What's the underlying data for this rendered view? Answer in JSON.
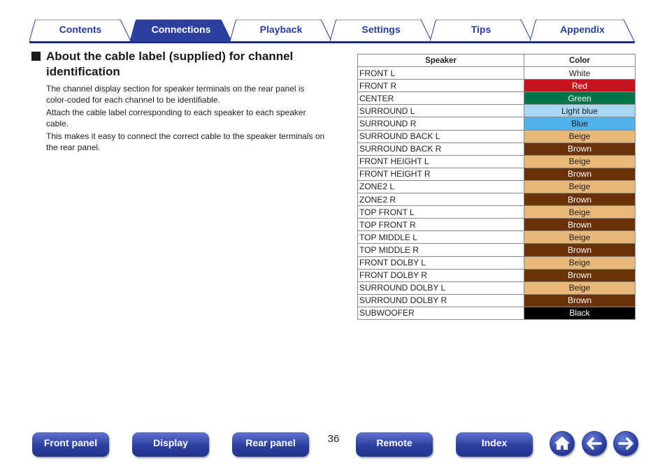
{
  "tabs": [
    {
      "label": "Contents",
      "active": false
    },
    {
      "label": "Connections",
      "active": true
    },
    {
      "label": "Playback",
      "active": false
    },
    {
      "label": "Settings",
      "active": false
    },
    {
      "label": "Tips",
      "active": false
    },
    {
      "label": "Appendix",
      "active": false
    }
  ],
  "section": {
    "title": "About the cable label (supplied) for channel identification",
    "paragraphs": [
      "The channel display section for speaker terminals on the rear panel is color-coded for each channel to be identifiable.",
      "Attach the cable label corresponding to each speaker to each speaker cable.",
      "This makes it easy to connect the correct cable to the speaker terminals on the rear panel."
    ]
  },
  "table": {
    "headers": [
      "Speaker",
      "Color"
    ],
    "rows": [
      {
        "speaker": "FRONT L",
        "color": "White",
        "bg": "#ffffff",
        "fg": "#222222"
      },
      {
        "speaker": "FRONT R",
        "color": "Red",
        "bg": "#c4161c",
        "fg": "#ffffff"
      },
      {
        "speaker": "CENTER",
        "color": "Green",
        "bg": "#00754a",
        "fg": "#ffffff"
      },
      {
        "speaker": "SURROUND L",
        "color": "Light blue",
        "bg": "#a9d6f2",
        "fg": "#222222"
      },
      {
        "speaker": "SURROUND R",
        "color": "Blue",
        "bg": "#50b2e8",
        "fg": "#222222"
      },
      {
        "speaker": "SURROUND BACK L",
        "color": "Beige",
        "bg": "#e8b878",
        "fg": "#222222"
      },
      {
        "speaker": "SURROUND BACK R",
        "color": "Brown",
        "bg": "#6b3208",
        "fg": "#ffffff"
      },
      {
        "speaker": "FRONT HEIGHT L",
        "color": "Beige",
        "bg": "#e8b878",
        "fg": "#222222"
      },
      {
        "speaker": "FRONT HEIGHT R",
        "color": "Brown",
        "bg": "#6b3208",
        "fg": "#ffffff"
      },
      {
        "speaker": "ZONE2 L",
        "color": "Beige",
        "bg": "#e8b878",
        "fg": "#222222"
      },
      {
        "speaker": "ZONE2 R",
        "color": "Brown",
        "bg": "#6b3208",
        "fg": "#ffffff"
      },
      {
        "speaker": "TOP FRONT L",
        "color": "Beige",
        "bg": "#e8b878",
        "fg": "#222222"
      },
      {
        "speaker": "TOP FRONT R",
        "color": "Brown",
        "bg": "#6b3208",
        "fg": "#ffffff"
      },
      {
        "speaker": "TOP MIDDLE L",
        "color": "Beige",
        "bg": "#e8b878",
        "fg": "#222222"
      },
      {
        "speaker": "TOP MIDDLE R",
        "color": "Brown",
        "bg": "#6b3208",
        "fg": "#ffffff"
      },
      {
        "speaker": "FRONT DOLBY L",
        "color": "Beige",
        "bg": "#e8b878",
        "fg": "#222222"
      },
      {
        "speaker": "FRONT DOLBY R",
        "color": "Brown",
        "bg": "#6b3208",
        "fg": "#ffffff"
      },
      {
        "speaker": "SURROUND DOLBY L",
        "color": "Beige",
        "bg": "#e8b878",
        "fg": "#222222"
      },
      {
        "speaker": "SURROUND DOLBY R",
        "color": "Brown",
        "bg": "#6b3208",
        "fg": "#ffffff"
      },
      {
        "speaker": "SUBWOOFER",
        "color": "Black",
        "bg": "#000000",
        "fg": "#ffffff"
      }
    ]
  },
  "footer": {
    "buttons": [
      "Front panel",
      "Display",
      "Rear panel",
      "Remote",
      "Index"
    ],
    "page_number": "36",
    "icons": [
      "home-icon",
      "arrow-left-icon",
      "arrow-right-icon"
    ]
  },
  "colors": {
    "accent": "#2a3d9a",
    "tab_active": "#2c3f9e",
    "tab_line": "#1f2f86"
  }
}
